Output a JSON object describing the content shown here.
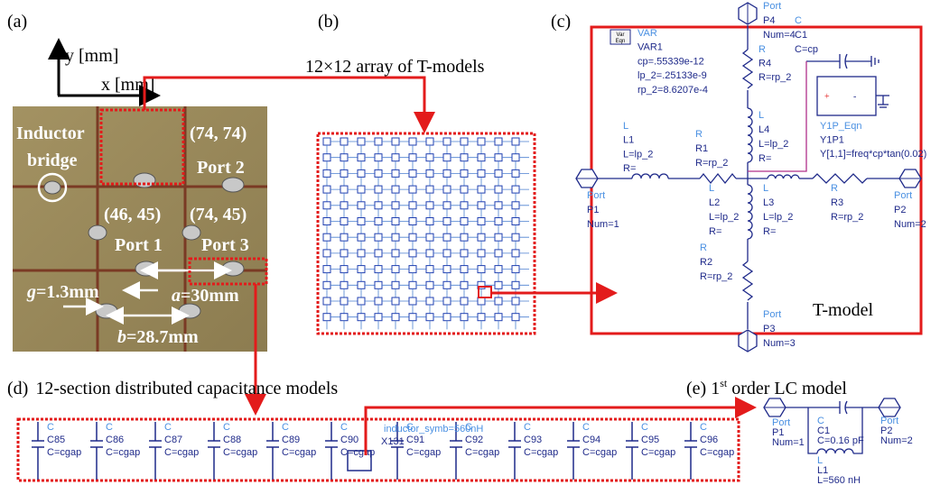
{
  "a": {
    "label": "(a)",
    "y_axis": "y [mm]",
    "x_axis": "x [mm]",
    "inductor_bridge": [
      "Inductor",
      "bridge"
    ],
    "port2": {
      "coord": "(74, 74)",
      "name": "Port 2"
    },
    "port1": {
      "coord": "(46, 45)",
      "name": "Port 1"
    },
    "port3": {
      "coord": "(74, 45)",
      "name": "Port 3"
    },
    "g": {
      "symbol": "g",
      "text": "=1.3mm"
    },
    "a": {
      "symbol": "a",
      "text": "=30mm"
    },
    "b": {
      "symbol": "b",
      "text": "=28.7mm"
    }
  },
  "b": {
    "label": "(b)",
    "title": "12×12 array of T-models"
  },
  "c": {
    "label": "(c)",
    "caption": "T-model",
    "var": {
      "icon": [
        "Var",
        "Eqn"
      ],
      "type": "VAR",
      "name": "VAR1",
      "lines": [
        "cp=.55339e-12",
        "lp_2=.25133e-9",
        "rp_2=8.6207e-4"
      ]
    },
    "p4": {
      "type": "Port",
      "name": "P4",
      "param": "Num=4"
    },
    "c1": {
      "type": "C",
      "name": "C1",
      "param": "C=cp"
    },
    "r4": {
      "type": "R",
      "name": "R4",
      "param": "R=rp_2"
    },
    "l4": {
      "type": "L",
      "name": "L4",
      "params": [
        "L=lp_2",
        "R="
      ]
    },
    "y1p": {
      "type": "Y1P_Eqn",
      "name": "Y1P1",
      "param": "Y[1,1]=freq*cp*tan(0.02)"
    },
    "l1": {
      "type": "L",
      "name": "L1",
      "params": [
        "L=lp_2",
        "R="
      ]
    },
    "r1": {
      "type": "R",
      "name": "R1",
      "param": "R=rp_2"
    },
    "p1": {
      "type": "Port",
      "name": "P1",
      "param": "Num=1"
    },
    "l2": {
      "type": "L",
      "name": "L2",
      "params": [
        "L=lp_2",
        "R="
      ]
    },
    "l3": {
      "type": "L",
      "name": "L3",
      "params": [
        "L=lp_2",
        "R="
      ]
    },
    "r3": {
      "type": "R",
      "name": "R3",
      "param": "R=rp_2"
    },
    "p2": {
      "type": "Port",
      "name": "P2",
      "param": "Num=2"
    },
    "r2": {
      "type": "R",
      "name": "R2",
      "param": "R=rp_2"
    },
    "p3": {
      "type": "Port",
      "name": "P3",
      "param": "Num=3"
    }
  },
  "d": {
    "label": "(d)",
    "title": "12-section distributed capacitance models",
    "type": "C",
    "param": "C=cgap",
    "capacitors": [
      "C85",
      "C86",
      "C87",
      "C88",
      "C89",
      "C90",
      "C91",
      "C92",
      "C93",
      "C94",
      "C95",
      "C96"
    ],
    "inductor": "inductor_symb=560nH",
    "subcircuit": "X131"
  },
  "e": {
    "label": "(e)",
    "title_num": "1",
    "title_sup": "st",
    "title_rest": " order LC model",
    "p1": {
      "type": "Port",
      "name": "P1",
      "param": "Num=1"
    },
    "c1": {
      "type": "C",
      "name": "C1",
      "param": "C=0.16 pF"
    },
    "p2": {
      "type": "Port",
      "name": "P2",
      "param": "Num=2"
    },
    "l1": {
      "type": "L",
      "name": "L1",
      "param": "L=560 nH"
    }
  }
}
